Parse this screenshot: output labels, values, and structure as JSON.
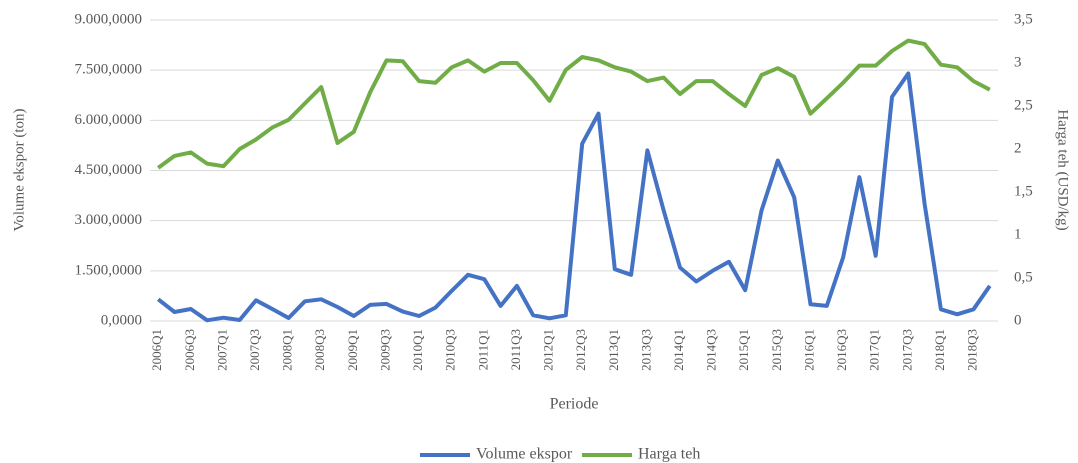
{
  "chart_data": {
    "type": "line",
    "x_label": "Periode",
    "y_label": "Volume ekspor (ton)",
    "y2_label": "Harga teh (USD/kg)",
    "categories": [
      "2006Q1",
      null,
      "2006Q3",
      null,
      "2007Q1",
      null,
      "2007Q3",
      null,
      "2008Q1",
      null,
      "2008Q3",
      null,
      "2009Q1",
      null,
      "2009Q3",
      null,
      "2010Q1",
      null,
      "2010Q3",
      null,
      "2011Q1",
      null,
      "2011Q3",
      null,
      "2012Q1",
      null,
      "2012Q3",
      null,
      "2013Q1",
      null,
      "2013Q3",
      null,
      "2014Q1",
      null,
      "2014Q3",
      null,
      "2015Q1",
      null,
      "2015Q3",
      null,
      "2016Q1",
      null,
      "2016Q3",
      null,
      "2017Q1",
      null,
      "2017Q3",
      null,
      "2018Q1",
      null,
      "2018Q3",
      null
    ],
    "series": [
      {
        "name": "Volume ekspor",
        "color": "#4472c4",
        "axis": "y",
        "values": [
          650000,
          270000,
          360000,
          20000,
          100000,
          30000,
          620000,
          360000,
          90000,
          590000,
          650000,
          420000,
          150000,
          480000,
          510000,
          280000,
          150000,
          400000,
          900000,
          1380000,
          1250000,
          450000,
          1050000,
          170000,
          80000,
          170000,
          5300000,
          6200000,
          1550000,
          1380000,
          5100000,
          3300000,
          1600000,
          1180000,
          1500000,
          1770000,
          920000,
          3300000,
          4800000,
          3700000,
          500000,
          450000,
          1900000,
          4300000,
          1950000,
          6700000,
          7400000,
          3500000,
          350000,
          200000,
          350000,
          1050000
        ]
      },
      {
        "name": "Harga teh",
        "color": "#70ad47",
        "axis": "y2",
        "values": [
          1.78,
          1.92,
          1.96,
          1.83,
          1.8,
          2.0,
          2.11,
          2.25,
          2.34,
          2.53,
          2.72,
          2.07,
          2.2,
          2.66,
          3.03,
          3.02,
          2.79,
          2.77,
          2.95,
          3.03,
          2.9,
          3.0,
          3.0,
          2.8,
          2.56,
          2.92,
          3.07,
          3.03,
          2.95,
          2.9,
          2.79,
          2.83,
          2.64,
          2.79,
          2.79,
          2.64,
          2.5,
          2.86,
          2.94,
          2.84,
          2.41,
          2.59,
          2.77,
          2.97,
          2.97,
          3.14,
          3.26,
          3.22,
          2.98,
          2.95,
          2.79,
          2.69
        ]
      }
    ],
    "ylim": [
      0,
      9000000
    ],
    "yticks": [
      {
        "value": 0,
        "label": "0,0000"
      },
      {
        "value": 1500000,
        "label": "1.500,0000"
      },
      {
        "value": 3000000,
        "label": "3.000,0000"
      },
      {
        "value": 4500000,
        "label": "4.500,0000"
      },
      {
        "value": 6000000,
        "label": "6.000,0000"
      },
      {
        "value": 7500000,
        "label": "7.500,0000"
      },
      {
        "value": 9000000,
        "label": "9.000,0000"
      }
    ],
    "y2lim": [
      0,
      3.5
    ],
    "y2ticks": [
      0,
      {
        "value": 0.5,
        "label": "0,5"
      },
      1,
      {
        "value": 1.5,
        "label": "1,5"
      },
      2,
      {
        "value": 2.5,
        "label": "2,5"
      },
      3,
      {
        "value": 3.5,
        "label": "3,5"
      }
    ],
    "grid": true,
    "legend": "bottom"
  }
}
